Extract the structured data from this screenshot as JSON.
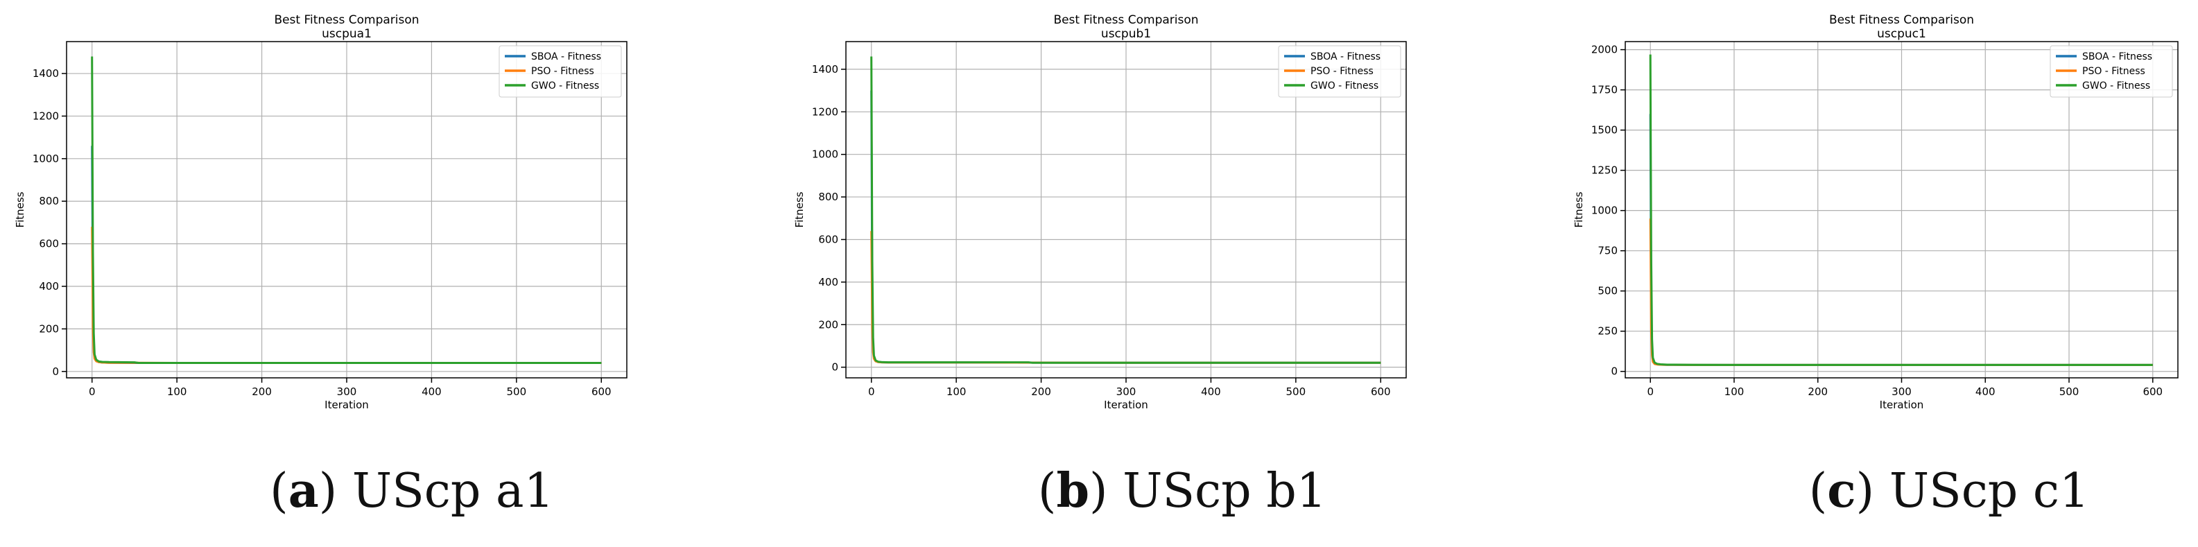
{
  "colors": {
    "sboa": "#1f77b4",
    "pso": "#ff7f0e",
    "gwo": "#2ca02c",
    "grid": "#b0b0b0"
  },
  "chart_data": [
    {
      "type": "line",
      "title": "Best Fitness Comparison",
      "subtitle": "uscpua1",
      "xlabel": "Iteration",
      "ylabel": "Fitness",
      "xlim": [
        -30,
        630
      ],
      "ylim": [
        -30,
        1550
      ],
      "xticks": [
        0,
        100,
        200,
        300,
        400,
        500,
        600
      ],
      "yticks": [
        0,
        200,
        400,
        600,
        800,
        1000,
        1200,
        1400
      ],
      "grid": true,
      "legend": "top-right",
      "series": [
        {
          "name": "SBOA - Fitness",
          "x": [
            0,
            1,
            2,
            3,
            5,
            8,
            12,
            20,
            50,
            100,
            300,
            600
          ],
          "y": [
            1060,
            300,
            120,
            70,
            50,
            44,
            42,
            41,
            40,
            40,
            40,
            40
          ]
        },
        {
          "name": "PSO - Fitness",
          "x": [
            0,
            1,
            2,
            3,
            5,
            8,
            12,
            20,
            50,
            100,
            300,
            600
          ],
          "y": [
            680,
            200,
            90,
            60,
            48,
            44,
            42,
            41,
            41,
            40,
            40,
            40
          ]
        },
        {
          "name": "GWO - Fitness",
          "x": [
            0,
            1,
            2,
            3,
            5,
            8,
            12,
            20,
            50,
            55,
            100,
            300,
            600
          ],
          "y": [
            1480,
            560,
            180,
            80,
            55,
            47,
            45,
            44,
            43,
            40,
            40,
            40,
            40
          ]
        }
      ],
      "caption_letter": "a",
      "caption_text": "UScp a1"
    },
    {
      "type": "line",
      "title": "Best Fitness Comparison",
      "subtitle": "uscpub1",
      "xlabel": "Iteration",
      "ylabel": "Fitness",
      "xlim": [
        -30,
        630
      ],
      "ylim": [
        -50,
        1530
      ],
      "xticks": [
        0,
        100,
        200,
        300,
        400,
        500,
        600
      ],
      "yticks": [
        0,
        200,
        400,
        600,
        800,
        1000,
        1200,
        1400
      ],
      "grid": true,
      "legend": "top-right",
      "series": [
        {
          "name": "SBOA - Fitness",
          "x": [
            0,
            1,
            2,
            3,
            5,
            8,
            12,
            20,
            50,
            100,
            300,
            600
          ],
          "y": [
            1300,
            280,
            90,
            45,
            30,
            25,
            23,
            22,
            22,
            22,
            21,
            21
          ]
        },
        {
          "name": "PSO - Fitness",
          "x": [
            0,
            1,
            2,
            3,
            5,
            8,
            12,
            20,
            50,
            100,
            300,
            600
          ],
          "y": [
            640,
            190,
            70,
            40,
            28,
            24,
            23,
            22,
            22,
            22,
            21,
            21
          ]
        },
        {
          "name": "GWO - Fitness",
          "x": [
            0,
            1,
            2,
            3,
            5,
            8,
            12,
            20,
            50,
            100,
            185,
            190,
            300,
            600
          ],
          "y": [
            1460,
            500,
            140,
            55,
            32,
            26,
            24,
            23,
            23,
            23,
            23,
            21,
            21,
            21
          ]
        }
      ],
      "caption_letter": "b",
      "caption_text": "UScp b1"
    },
    {
      "type": "line",
      "title": "Best Fitness Comparison",
      "subtitle": "uscpuc1",
      "xlabel": "Iteration",
      "ylabel": "Fitness",
      "xlim": [
        -30,
        630
      ],
      "ylim": [
        -40,
        2050
      ],
      "xticks": [
        0,
        100,
        200,
        300,
        400,
        500,
        600
      ],
      "yticks": [
        0,
        250,
        500,
        750,
        1000,
        1250,
        1500,
        1750,
        2000
      ],
      "grid": true,
      "legend": "top-right",
      "series": [
        {
          "name": "SBOA - Fitness",
          "x": [
            0,
            1,
            2,
            3,
            5,
            8,
            12,
            20,
            50,
            100,
            300,
            600
          ],
          "y": [
            1600,
            400,
            140,
            75,
            50,
            44,
            42,
            41,
            40,
            40,
            40,
            40
          ]
        },
        {
          "name": "PSO - Fitness",
          "x": [
            0,
            1,
            2,
            3,
            5,
            8,
            12,
            20,
            50,
            100,
            300,
            600
          ],
          "y": [
            950,
            250,
            100,
            60,
            46,
            43,
            42,
            41,
            40,
            40,
            40,
            40
          ]
        },
        {
          "name": "GWO - Fitness",
          "x": [
            0,
            1,
            2,
            3,
            5,
            8,
            12,
            20,
            50,
            100,
            300,
            600
          ],
          "y": [
            1970,
            700,
            200,
            85,
            55,
            47,
            44,
            42,
            41,
            40,
            40,
            40
          ]
        }
      ],
      "caption_letter": "c",
      "caption_text": "UScp c1"
    }
  ]
}
